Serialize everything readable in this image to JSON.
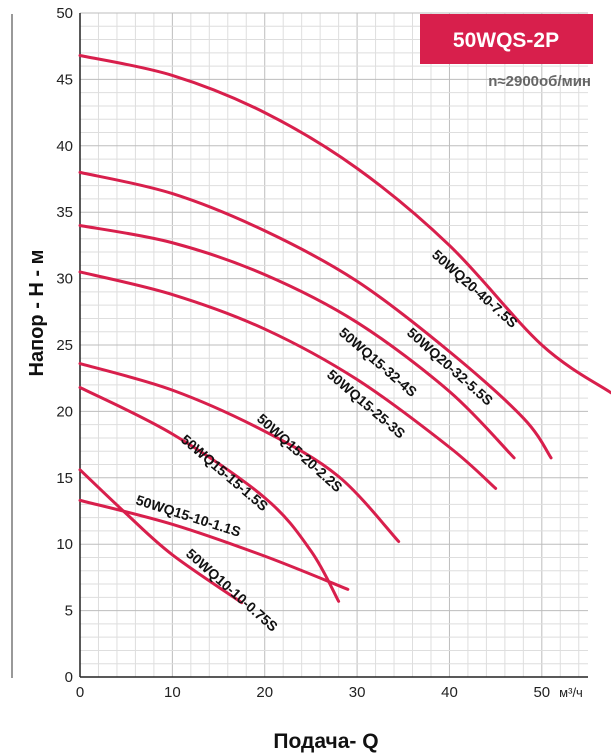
{
  "header": {
    "model": "50WQS-2P",
    "speed": "n≈2900об/мин",
    "accent_color": "#d81f4c"
  },
  "chart_data": {
    "type": "line",
    "xlabel": "Подача- Q",
    "ylabel": "Напор - H - м",
    "x_unit": "м³/ч",
    "xlim": [
      0,
      55
    ],
    "ylim": [
      0,
      50
    ],
    "x_ticks": [
      0,
      10,
      20,
      30,
      40,
      50
    ],
    "y_ticks": [
      0,
      5,
      10,
      15,
      20,
      25,
      30,
      35,
      40,
      45,
      50
    ],
    "grid": true,
    "minor_grid": true,
    "series_color": "#d81f4c",
    "series": [
      {
        "name": "50WQ20-40-7.5S",
        "x": [
          0,
          10,
          20,
          30,
          40,
          50,
          57.5
        ],
        "y": [
          46.8,
          45.3,
          42.5,
          38.3,
          32.5,
          25.0,
          21.4
        ]
      },
      {
        "name": "50WQ20-32-5.5S",
        "x": [
          0,
          10,
          20,
          30,
          40,
          48,
          51
        ],
        "y": [
          38.0,
          36.4,
          33.6,
          29.8,
          24.5,
          19.5,
          16.5
        ]
      },
      {
        "name": "50WQ15-32-4S",
        "x": [
          0,
          10,
          20,
          30,
          40,
          47
        ],
        "y": [
          34.0,
          32.7,
          30.3,
          26.7,
          21.5,
          16.5
        ]
      },
      {
        "name": "50WQ15-25-3S",
        "x": [
          0,
          10,
          20,
          30,
          40,
          45
        ],
        "y": [
          30.5,
          28.8,
          26.2,
          22.4,
          17.3,
          14.2
        ]
      },
      {
        "name": "50WQ15-20-2.2S",
        "x": [
          0,
          10,
          20,
          28,
          34.5
        ],
        "y": [
          23.6,
          21.6,
          18.5,
          15.1,
          10.2
        ]
      },
      {
        "name": "50WQ15-15-1.5S",
        "x": [
          0,
          10,
          20,
          25,
          28
        ],
        "y": [
          21.8,
          18.3,
          13.5,
          9.5,
          5.7
        ]
      },
      {
        "name": "50WQ15-10-1.1S",
        "x": [
          0,
          10,
          20,
          29
        ],
        "y": [
          13.3,
          11.5,
          9.1,
          6.6
        ]
      },
      {
        "name": "50WQ10-10-0.75S",
        "x": [
          0,
          5,
          10,
          17.5
        ],
        "y": [
          15.6,
          12.3,
          9.2,
          5.6
        ]
      }
    ]
  }
}
